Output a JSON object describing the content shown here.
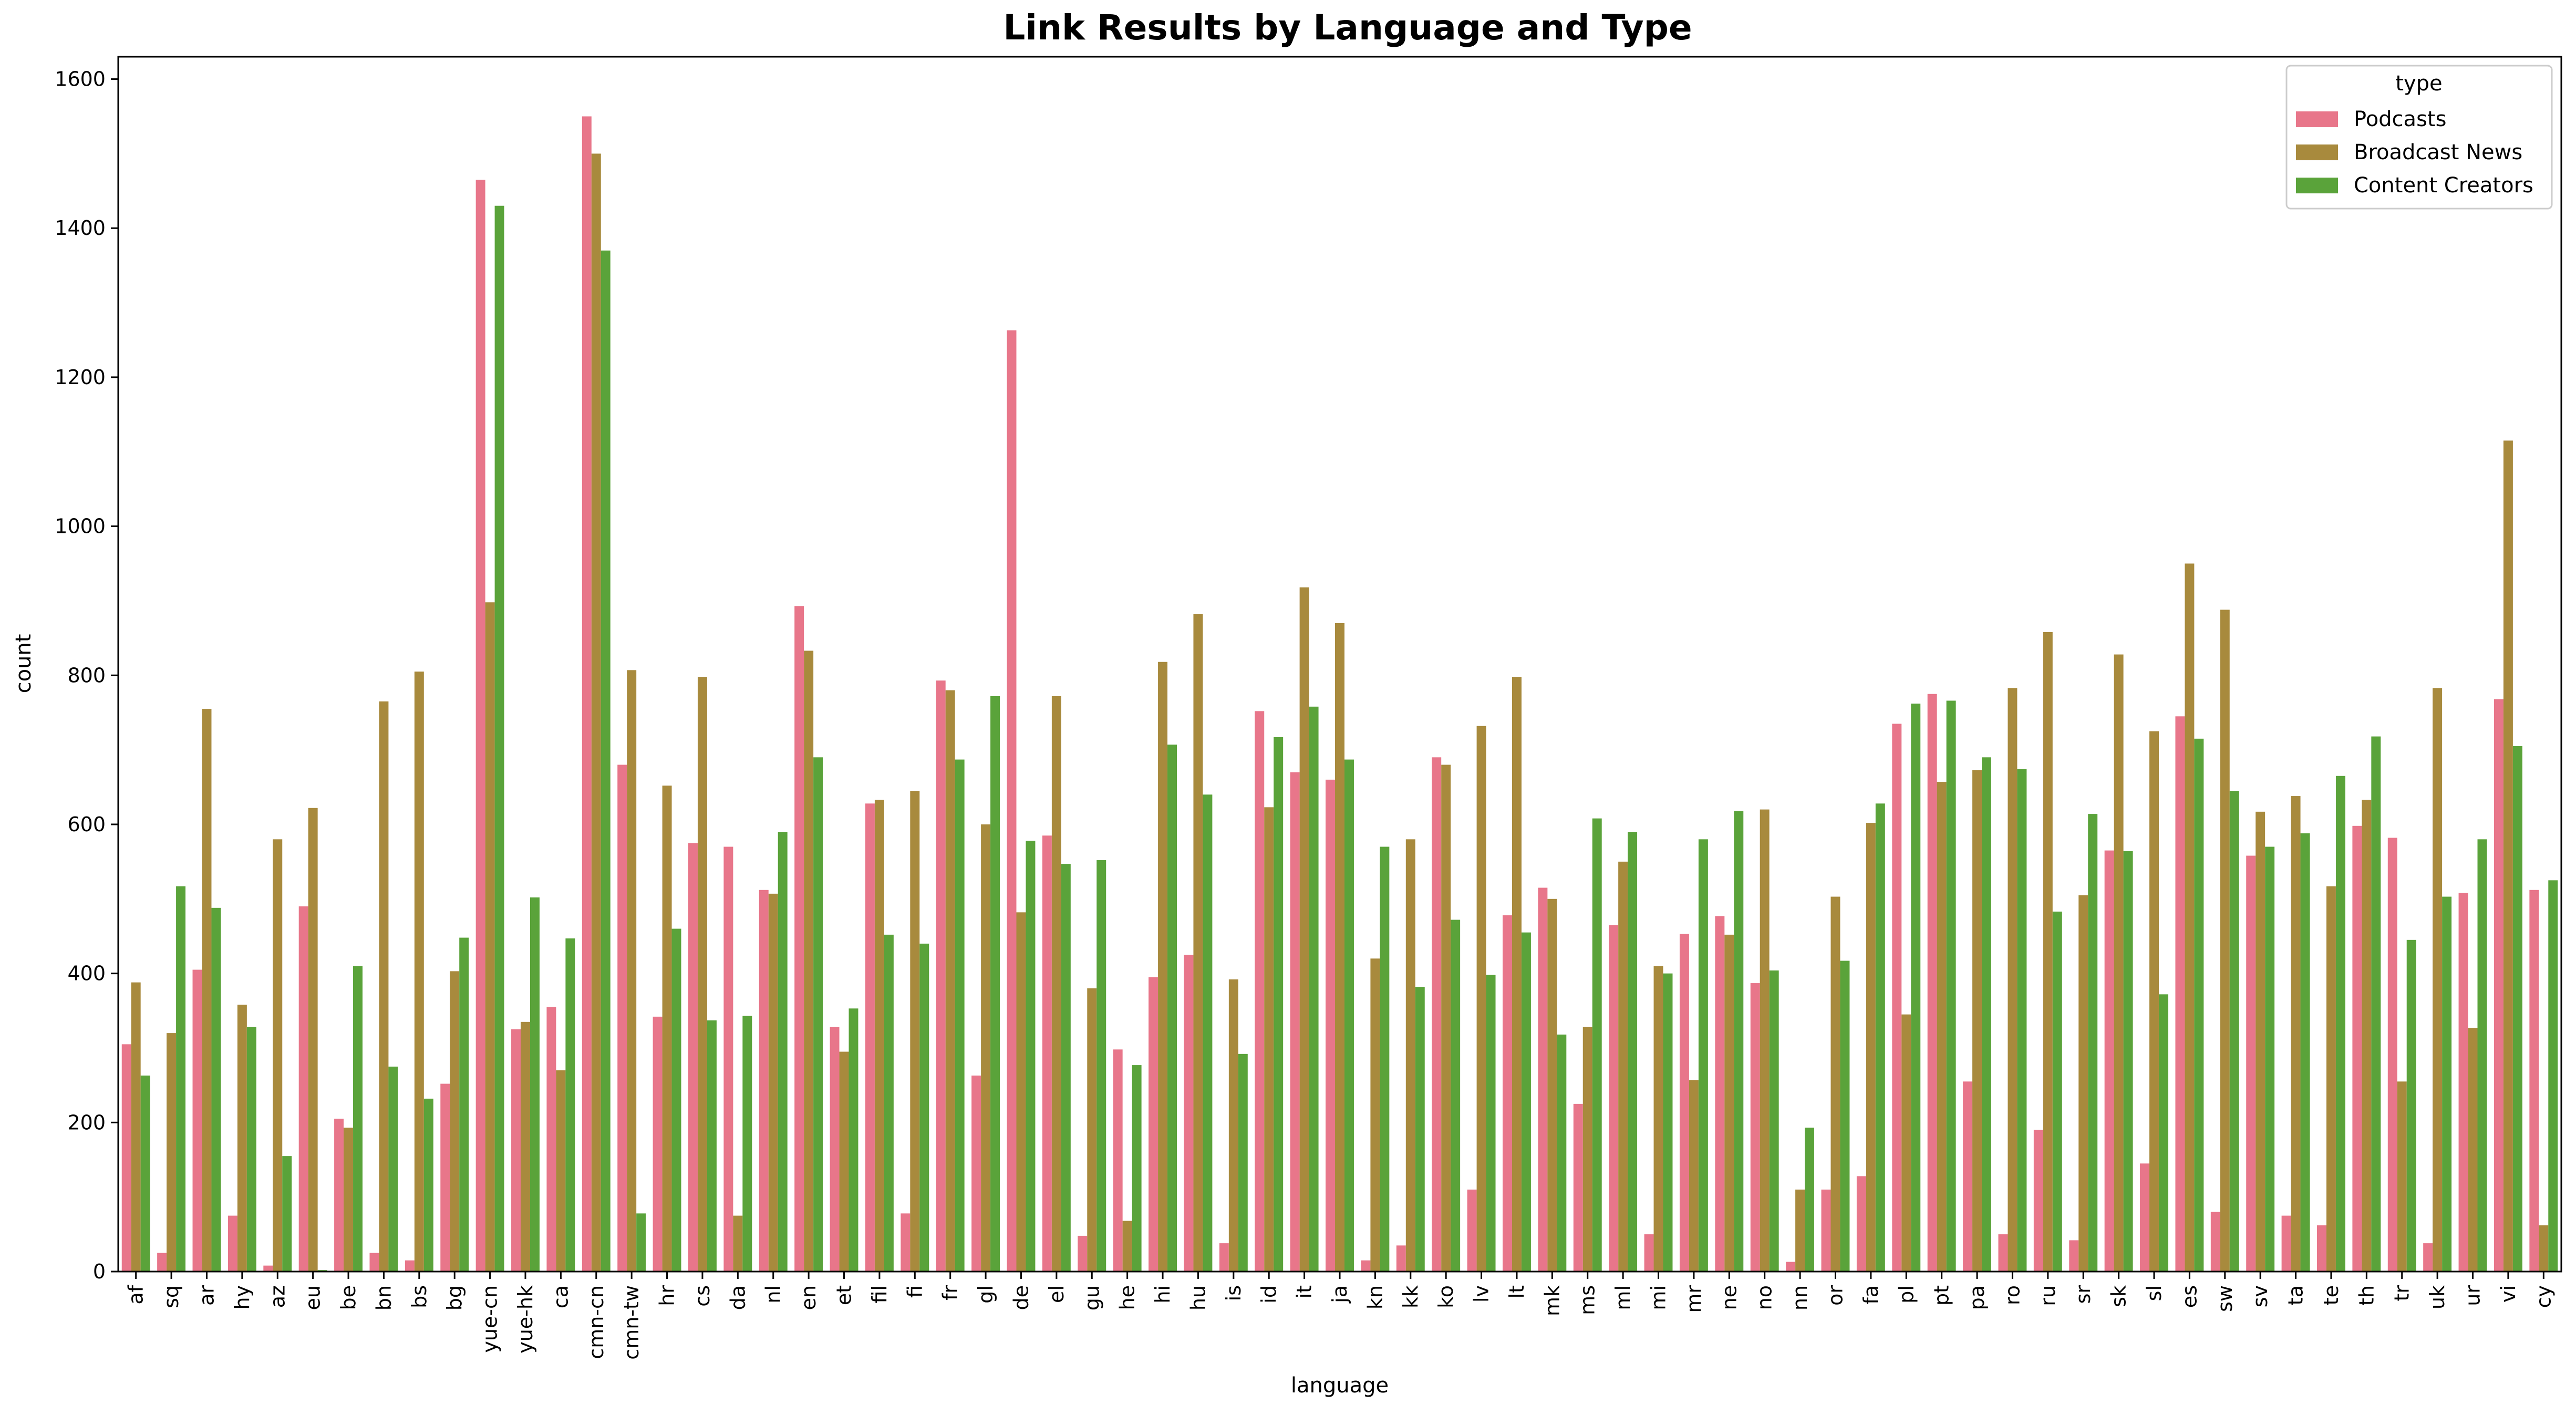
{
  "chart_data": {
    "type": "bar",
    "title": "Link Results by Language and Type",
    "xlabel": "language",
    "ylabel": "count",
    "ylim": [
      0,
      1630
    ],
    "yticks": [
      0,
      200,
      400,
      600,
      800,
      1000,
      1200,
      1400,
      1600
    ],
    "grid": false,
    "legend": {
      "title": "type",
      "position": "top-right"
    },
    "categories": [
      "af",
      "sq",
      "ar",
      "hy",
      "az",
      "eu",
      "be",
      "bn",
      "bs",
      "bg",
      "yue-cn",
      "yue-hk",
      "ca",
      "cmn-cn",
      "cmn-tw",
      "hr",
      "cs",
      "da",
      "nl",
      "en",
      "et",
      "fil",
      "fi",
      "fr",
      "gl",
      "de",
      "el",
      "gu",
      "he",
      "hi",
      "hu",
      "is",
      "id",
      "it",
      "ja",
      "kn",
      "kk",
      "ko",
      "lv",
      "lt",
      "mk",
      "ms",
      "ml",
      "mi",
      "mr",
      "ne",
      "no",
      "nn",
      "or",
      "fa",
      "pl",
      "pt",
      "pa",
      "ro",
      "ru",
      "sr",
      "sk",
      "sl",
      "es",
      "sw",
      "sv",
      "ta",
      "te",
      "th",
      "tr",
      "uk",
      "ur",
      "vi",
      "cy"
    ],
    "series": [
      {
        "name": "Podcasts",
        "color": "#e8768a",
        "values": [
          305,
          25,
          405,
          75,
          8,
          490,
          205,
          25,
          15,
          252,
          1465,
          325,
          355,
          1550,
          680,
          342,
          575,
          570,
          512,
          893,
          328,
          628,
          78,
          793,
          263,
          1263,
          585,
          48,
          298,
          395,
          425,
          38,
          752,
          670,
          660,
          15,
          35,
          690,
          110,
          478,
          515,
          225,
          465,
          50,
          453,
          477,
          387,
          13,
          110,
          128,
          735,
          775,
          255,
          50,
          190,
          42,
          565,
          145,
          745,
          80,
          558,
          75,
          62,
          598,
          582,
          38,
          508,
          768,
          512
        ]
      },
      {
        "name": "Broadcast News",
        "color": "#a88a3d",
        "values": [
          388,
          320,
          755,
          358,
          580,
          622,
          193,
          765,
          805,
          403,
          898,
          335,
          270,
          1500,
          807,
          652,
          798,
          75,
          507,
          833,
          295,
          633,
          645,
          780,
          600,
          482,
          772,
          380,
          68,
          818,
          882,
          392,
          623,
          918,
          870,
          420,
          580,
          680,
          732,
          798,
          500,
          328,
          550,
          410,
          257,
          452,
          620,
          110,
          503,
          602,
          345,
          657,
          673,
          783,
          858,
          505,
          828,
          725,
          950,
          888,
          617,
          638,
          517,
          633,
          255,
          783,
          327,
          1115,
          62
        ]
      },
      {
        "name": "Content Creators",
        "color": "#5aa33a",
        "values": [
          263,
          517,
          488,
          328,
          155,
          2,
          410,
          275,
          232,
          448,
          1430,
          502,
          447,
          1370,
          78,
          460,
          337,
          343,
          590,
          690,
          353,
          452,
          440,
          687,
          772,
          578,
          547,
          552,
          277,
          707,
          640,
          292,
          717,
          758,
          687,
          570,
          382,
          472,
          398,
          455,
          318,
          608,
          590,
          400,
          580,
          618,
          404,
          193,
          417,
          628,
          762,
          766,
          690,
          674,
          483,
          614,
          564,
          372,
          715,
          645,
          570,
          588,
          665,
          718,
          445,
          503,
          580,
          705,
          525
        ]
      }
    ]
  }
}
